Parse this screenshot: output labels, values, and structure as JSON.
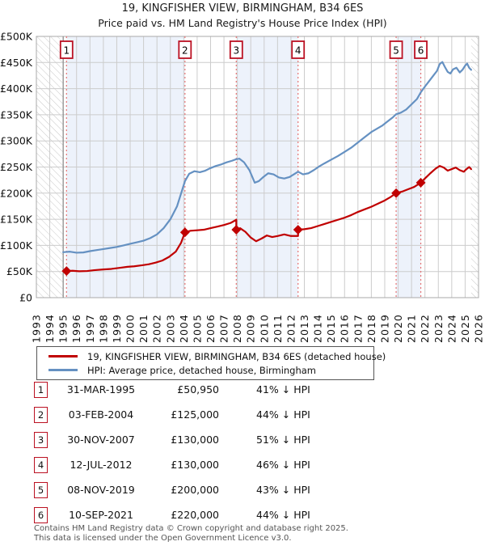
{
  "header": {
    "title_line1": "19, KINGFISHER VIEW, BIRMINGHAM, B34 6ES",
    "title_line2": "Price paid vs. HM Land Registry's House Price Index (HPI)"
  },
  "legend": {
    "series1_label": "19, KINGFISHER VIEW, BIRMINGHAM, B34 6ES (detached house)",
    "series2_label": "HPI: Average price, detached house, Birmingham"
  },
  "transactions": [
    {
      "num": "1",
      "date": "31-MAR-1995",
      "price": "£50,950",
      "vs_hpi": "41% ↓ HPI"
    },
    {
      "num": "2",
      "date": "03-FEB-2004",
      "price": "£125,000",
      "vs_hpi": "44% ↓ HPI"
    },
    {
      "num": "3",
      "date": "30-NOV-2007",
      "price": "£130,000",
      "vs_hpi": "51% ↓ HPI"
    },
    {
      "num": "4",
      "date": "12-JUL-2012",
      "price": "£130,000",
      "vs_hpi": "46% ↓ HPI"
    },
    {
      "num": "5",
      "date": "08-NOV-2019",
      "price": "£200,000",
      "vs_hpi": "43% ↓ HPI"
    },
    {
      "num": "6",
      "date": "10-SEP-2021",
      "price": "£220,000",
      "vs_hpi": "44% ↓ HPI"
    }
  ],
  "footer": {
    "line1": "Contains HM Land Registry data © Crown copyright and database right 2025.",
    "line2": "This data is licensed under the Open Government Licence v3.0."
  },
  "chart_data": {
    "type": "line",
    "title": "Price paid vs. HM Land Registry's House Price Index (HPI)",
    "x_axis": {
      "min": 1993,
      "max": 2026,
      "tick_labels": [
        "1993",
        "1994",
        "1995",
        "1996",
        "1997",
        "1998",
        "1999",
        "2000",
        "2001",
        "2002",
        "2003",
        "2004",
        "2005",
        "2006",
        "2007",
        "2008",
        "2009",
        "2010",
        "2011",
        "2012",
        "2013",
        "2014",
        "2015",
        "2016",
        "2017",
        "2018",
        "2019",
        "2020",
        "2021",
        "2022",
        "2023",
        "2024",
        "2025",
        "2026"
      ]
    },
    "y_axis": {
      "min": 0,
      "max": 500,
      "unit": "GBP thousands",
      "tick_step": 50,
      "tick_labels": [
        "£0",
        "£50K",
        "£100K",
        "£150K",
        "£200K",
        "£250K",
        "£300K",
        "£350K",
        "£400K",
        "£450K",
        "£500K"
      ]
    },
    "grid": true,
    "legend_position": "below",
    "colors": {
      "price_paid": "#c00000",
      "hpi": "#6591c2",
      "band": "#edf2fb",
      "grid": "#cccccc",
      "plot_border": "#aaaaaa",
      "sale_line": "#e57373",
      "marker_box_border": "#bb1122",
      "hatch_line": "#c9c9c9",
      "data_edge": "#888888"
    },
    "shaded_bands_years": [
      [
        1995.25,
        2004.09
      ],
      [
        2007.92,
        2012.53
      ],
      [
        2019.85,
        2021.69
      ]
    ],
    "no_data_hatch_years": [
      [
        1993,
        1995.0
      ],
      [
        2025.45,
        2026
      ]
    ],
    "sales": [
      {
        "label": "1",
        "year": 1995.25,
        "value_k": 50.95
      },
      {
        "label": "2",
        "year": 2004.09,
        "value_k": 125
      },
      {
        "label": "3",
        "year": 2007.92,
        "value_k": 130
      },
      {
        "label": "4",
        "year": 2012.53,
        "value_k": 130
      },
      {
        "label": "5",
        "year": 2019.85,
        "value_k": 200
      },
      {
        "label": "6",
        "year": 2021.69,
        "value_k": 220
      }
    ],
    "series": [
      {
        "name": "price_paid",
        "color": "#c00000",
        "width": 2.2,
        "points_year_k": [
          [
            1995.25,
            51
          ],
          [
            1995.7,
            51.5
          ],
          [
            1996.2,
            50.5
          ],
          [
            1996.8,
            51
          ],
          [
            1997.3,
            52.5
          ],
          [
            1998,
            54
          ],
          [
            1998.6,
            55
          ],
          [
            1999.2,
            57
          ],
          [
            1999.8,
            59
          ],
          [
            2000.3,
            60
          ],
          [
            2000.9,
            62
          ],
          [
            2001.4,
            64
          ],
          [
            2001.9,
            67
          ],
          [
            2002.4,
            71
          ],
          [
            2002.9,
            78
          ],
          [
            2003.4,
            88
          ],
          [
            2003.8,
            105
          ],
          [
            2004.09,
            125
          ],
          [
            2004.5,
            128
          ],
          [
            2005,
            129
          ],
          [
            2005.5,
            130
          ],
          [
            2006,
            133
          ],
          [
            2006.5,
            136
          ],
          [
            2007,
            139
          ],
          [
            2007.5,
            143
          ],
          [
            2007.92,
            149
          ],
          [
            2007.92,
            130
          ],
          [
            2008.2,
            133
          ],
          [
            2008.6,
            126
          ],
          [
            2009,
            115
          ],
          [
            2009.4,
            108
          ],
          [
            2009.8,
            113
          ],
          [
            2010.2,
            119
          ],
          [
            2010.6,
            116
          ],
          [
            2011,
            118
          ],
          [
            2011.5,
            121
          ],
          [
            2012,
            118
          ],
          [
            2012.53,
            118
          ],
          [
            2012.53,
            130
          ],
          [
            2013,
            131
          ],
          [
            2013.5,
            133
          ],
          [
            2014,
            137
          ],
          [
            2014.5,
            141
          ],
          [
            2015,
            145
          ],
          [
            2015.5,
            149
          ],
          [
            2016,
            153
          ],
          [
            2016.5,
            158
          ],
          [
            2017,
            164
          ],
          [
            2017.5,
            169
          ],
          [
            2018,
            174
          ],
          [
            2018.5,
            180
          ],
          [
            2019,
            186
          ],
          [
            2019.4,
            192
          ],
          [
            2019.85,
            200
          ],
          [
            2020.3,
            203
          ],
          [
            2020.8,
            208
          ],
          [
            2021.2,
            212
          ],
          [
            2021.69,
            220
          ],
          [
            2022,
            228
          ],
          [
            2022.4,
            238
          ],
          [
            2022.8,
            247
          ],
          [
            2023.1,
            252
          ],
          [
            2023.4,
            249
          ],
          [
            2023.7,
            243
          ],
          [
            2024,
            246
          ],
          [
            2024.3,
            249
          ],
          [
            2024.6,
            244
          ],
          [
            2024.9,
            241
          ],
          [
            2025.1,
            246
          ],
          [
            2025.3,
            250
          ],
          [
            2025.45,
            246
          ]
        ]
      },
      {
        "name": "hpi",
        "color": "#6591c2",
        "width": 2.2,
        "points_year_k": [
          [
            1995,
            87
          ],
          [
            1995.5,
            88
          ],
          [
            1996,
            86
          ],
          [
            1996.5,
            86.5
          ],
          [
            1997,
            89
          ],
          [
            1997.5,
            91
          ],
          [
            1998,
            93
          ],
          [
            1998.5,
            95
          ],
          [
            1999,
            97
          ],
          [
            1999.5,
            100
          ],
          [
            2000,
            103
          ],
          [
            2000.5,
            106
          ],
          [
            2001,
            109
          ],
          [
            2001.5,
            114
          ],
          [
            2002,
            121
          ],
          [
            2002.5,
            133
          ],
          [
            2003,
            150
          ],
          [
            2003.5,
            175
          ],
          [
            2004.09,
            223
          ],
          [
            2004.4,
            237
          ],
          [
            2004.8,
            242
          ],
          [
            2005.2,
            240
          ],
          [
            2005.6,
            243
          ],
          [
            2006,
            248
          ],
          [
            2006.4,
            252
          ],
          [
            2006.8,
            255
          ],
          [
            2007.2,
            259
          ],
          [
            2007.6,
            262
          ],
          [
            2007.92,
            265
          ],
          [
            2008.15,
            266
          ],
          [
            2008.5,
            259
          ],
          [
            2008.9,
            244
          ],
          [
            2009.3,
            220
          ],
          [
            2009.6,
            223
          ],
          [
            2009.9,
            230
          ],
          [
            2010.3,
            238
          ],
          [
            2010.7,
            236
          ],
          [
            2011.1,
            230
          ],
          [
            2011.5,
            228
          ],
          [
            2011.9,
            231
          ],
          [
            2012.53,
            241
          ],
          [
            2012.9,
            236
          ],
          [
            2013.3,
            238
          ],
          [
            2013.7,
            244
          ],
          [
            2014.1,
            251
          ],
          [
            2014.5,
            257
          ],
          [
            2015,
            264
          ],
          [
            2015.5,
            271
          ],
          [
            2016,
            279
          ],
          [
            2016.5,
            287
          ],
          [
            2017,
            297
          ],
          [
            2017.5,
            307
          ],
          [
            2018,
            317
          ],
          [
            2018.4,
            323
          ],
          [
            2018.8,
            329
          ],
          [
            2019.2,
            337
          ],
          [
            2019.6,
            345
          ],
          [
            2019.85,
            351
          ],
          [
            2020.2,
            354
          ],
          [
            2020.6,
            360
          ],
          [
            2021,
            370
          ],
          [
            2021.4,
            380
          ],
          [
            2021.69,
            393
          ],
          [
            2022,
            404
          ],
          [
            2022.3,
            414
          ],
          [
            2022.6,
            424
          ],
          [
            2022.9,
            434
          ],
          [
            2023.1,
            447
          ],
          [
            2023.3,
            451
          ],
          [
            2023.5,
            441
          ],
          [
            2023.7,
            432
          ],
          [
            2023.9,
            429
          ],
          [
            2024.1,
            437
          ],
          [
            2024.35,
            440
          ],
          [
            2024.6,
            431
          ],
          [
            2024.8,
            436
          ],
          [
            2025,
            444
          ],
          [
            2025.15,
            448
          ],
          [
            2025.3,
            440
          ],
          [
            2025.45,
            436
          ]
        ]
      }
    ]
  }
}
